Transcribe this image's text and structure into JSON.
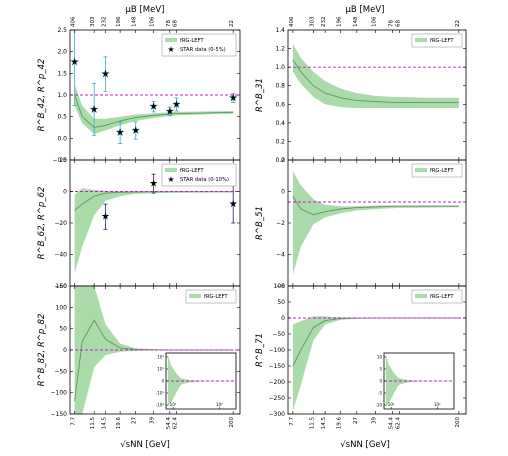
{
  "top_axis": {
    "label": "μB [MeV]",
    "ticks": [
      "406",
      "303",
      "232",
      "196",
      "148",
      "106",
      "78",
      "68",
      "22"
    ]
  },
  "bottom_axis": {
    "label": "√sNN [GeV]",
    "ticks": [
      "7.7",
      "11.5",
      "14.5",
      "19.6",
      "27",
      "39",
      "54.4",
      "62.4",
      "200"
    ]
  },
  "chart_data": [
    {
      "type": "line",
      "panel": "top-left",
      "ylabel": "R^B_42, R^p_42",
      "ylim": [
        -0.5,
        2.5
      ],
      "yticks": [
        "−0.5",
        "0.0",
        "0.5",
        "1.0",
        "1.5",
        "2.0",
        "2.5"
      ],
      "reference_line": 1.0,
      "legend": [
        "fRG-LEFT",
        "STAR data (0-5%)"
      ],
      "legend_placement": "top-right",
      "series": [
        {
          "name": "fRG-LEFT",
          "x": [
            7.7,
            9,
            11.5,
            14.5,
            19.6,
            27,
            39,
            54.4,
            62.4,
            100,
            200
          ],
          "y": [
            1.0,
            0.5,
            0.25,
            0.3,
            0.4,
            0.48,
            0.53,
            0.56,
            0.57,
            0.58,
            0.6
          ],
          "upper": [
            1.25,
            0.75,
            0.45,
            0.45,
            0.5,
            0.55,
            0.58,
            0.6,
            0.61,
            0.62,
            0.63
          ],
          "lower": [
            0.75,
            0.35,
            0.1,
            0.18,
            0.3,
            0.4,
            0.47,
            0.52,
            0.53,
            0.55,
            0.57
          ]
        },
        {
          "name": "STAR data (0-5%)",
          "x": [
            7.7,
            11.5,
            14.5,
            19.6,
            27,
            39,
            54.4,
            62.4,
            200
          ],
          "y": [
            1.76,
            0.67,
            1.48,
            0.13,
            0.18,
            0.73,
            0.62,
            0.78,
            0.93
          ],
          "err": [
            1.0,
            0.6,
            0.4,
            0.25,
            0.2,
            0.12,
            0.1,
            0.15,
            0.1
          ]
        }
      ]
    },
    {
      "type": "line",
      "panel": "top-right",
      "ylabel": "R^B_31",
      "ylim": [
        0.0,
        1.4
      ],
      "yticks": [
        "0.0",
        "0.2",
        "0.4",
        "0.6",
        "0.8",
        "1.0",
        "1.2",
        "1.4"
      ],
      "reference_line": 1.0,
      "legend": [
        "fRG-LEFT"
      ],
      "legend_placement": "top-right",
      "series": [
        {
          "name": "fRG-LEFT",
          "x": [
            7.7,
            9,
            11.5,
            14.5,
            19.6,
            27,
            39,
            54.4,
            62.4,
            100,
            200
          ],
          "y": [
            1.08,
            0.95,
            0.8,
            0.72,
            0.67,
            0.64,
            0.63,
            0.62,
            0.62,
            0.62,
            0.62
          ],
          "upper": [
            1.25,
            1.1,
            0.95,
            0.85,
            0.77,
            0.72,
            0.69,
            0.68,
            0.68,
            0.67,
            0.67
          ],
          "lower": [
            0.95,
            0.82,
            0.68,
            0.6,
            0.57,
            0.56,
            0.56,
            0.56,
            0.56,
            0.56,
            0.56
          ]
        }
      ]
    },
    {
      "type": "line",
      "panel": "middle-left",
      "ylabel": "R^B_62, R^p_62",
      "ylim": [
        -60,
        20
      ],
      "yticks": [
        "−60",
        "−40",
        "−20",
        "0",
        "20"
      ],
      "reference_line": 0,
      "legend": [
        "fRG-LEFT",
        "STAR data (0-10%)"
      ],
      "legend_placement": "top-right",
      "series": [
        {
          "name": "fRG-LEFT",
          "x": [
            7.7,
            9,
            11.5,
            14.5,
            19.6,
            27,
            39,
            54.4,
            62.4,
            100,
            200
          ],
          "y": [
            -12,
            -8,
            -3,
            -1,
            -0.5,
            -0.3,
            -0.2,
            -0.2,
            -0.2,
            -0.2,
            -0.2
          ],
          "upper": [
            -2,
            2,
            1,
            0.5,
            0.3,
            0.2,
            0.1,
            0.1,
            0.1,
            0.1,
            0.1
          ],
          "lower": [
            -52,
            -35,
            -15,
            -6,
            -3,
            -1.5,
            -1,
            -0.8,
            -0.7,
            -0.6,
            -0.5
          ]
        },
        {
          "name": "STAR data (0-10%)",
          "x": [
            14.5,
            39,
            200
          ],
          "y": [
            -16,
            5,
            -8
          ],
          "err": [
            8,
            6,
            12
          ]
        }
      ]
    },
    {
      "type": "line",
      "panel": "middle-right",
      "ylabel": "R^B_51",
      "ylim": [
        -6,
        3
      ],
      "yticks": [
        "−6",
        "−4",
        "−2",
        "0",
        "2"
      ],
      "reference_line": 0,
      "legend": [
        "fRG-LEFT"
      ],
      "legend_placement": "top-right",
      "series": [
        {
          "name": "fRG-LEFT",
          "x": [
            7.7,
            9,
            11.5,
            14.5,
            19.6,
            27,
            39,
            54.4,
            62.4,
            100,
            200
          ],
          "y": [
            0.4,
            -0.5,
            -0.9,
            -0.7,
            -0.5,
            -0.4,
            -0.35,
            -0.3,
            -0.3,
            -0.3,
            -0.3
          ],
          "upper": [
            2.2,
            1.2,
            0.2,
            -0.2,
            -0.3,
            -0.3,
            -0.25,
            -0.25,
            -0.25,
            -0.25,
            -0.25
          ],
          "lower": [
            -5.2,
            -3.2,
            -1.6,
            -1.1,
            -0.8,
            -0.6,
            -0.5,
            -0.45,
            -0.42,
            -0.4,
            -0.38
          ]
        }
      ]
    },
    {
      "type": "line",
      "panel": "bottom-left",
      "ylabel": "R^B_82, R^p_82",
      "ylim": [
        -150,
        150
      ],
      "yticks": [
        "−150",
        "−100",
        "−50",
        "0",
        "50",
        "100",
        "150"
      ],
      "reference_line": 0,
      "legend": [
        "fRG-LEFT"
      ],
      "legend_placement": "top-right",
      "series": [
        {
          "name": "fRG-LEFT",
          "x": [
            7.7,
            9,
            11.5,
            14.5,
            19.6,
            27,
            39,
            54.4,
            62.4,
            100,
            200
          ],
          "y": [
            -120,
            20,
            70,
            25,
            5,
            1,
            0.5,
            0.2,
            0.2,
            0.1,
            0.1
          ],
          "upper": [
            150,
            150,
            150,
            60,
            15,
            4,
            2,
            1,
            1,
            0.5,
            0.5
          ],
          "lower": [
            -150,
            -150,
            -40,
            -12,
            -4,
            -2,
            -1,
            -0.5,
            -0.5,
            -0.3,
            -0.3
          ]
        }
      ]
    },
    {
      "type": "line",
      "panel": "bottom-right",
      "ylabel": "R^B_71",
      "ylim": [
        -300,
        100
      ],
      "yticks": [
        "−300",
        "−250",
        "−200",
        "−150",
        "−100",
        "−50",
        "0",
        "50",
        "100"
      ],
      "reference_line": 0,
      "legend": [
        "fRG-LEFT"
      ],
      "legend_placement": "top-right",
      "series": [
        {
          "name": "fRG-LEFT",
          "x": [
            7.7,
            9,
            11.5,
            14.5,
            19.6,
            27,
            39,
            54.4,
            62.4,
            100,
            200
          ],
          "y": [
            -150,
            -100,
            -30,
            -8,
            -2,
            -0.5,
            -0.2,
            -0.1,
            -0.1,
            -0.1,
            -0.1
          ],
          "upper": [
            -20,
            -10,
            5,
            5,
            2,
            1,
            0.5,
            0.3,
            0.3,
            0.2,
            0.2
          ],
          "lower": [
            -290,
            -210,
            -70,
            -20,
            -6,
            -2,
            -1,
            -0.5,
            -0.5,
            -0.3,
            -0.3
          ]
        }
      ]
    }
  ],
  "insets": {
    "bottom-left": {
      "yticks": [
        "10³",
        "10¹",
        "0",
        "-10¹",
        "-10³"
      ],
      "xticks": [
        "10¹",
        "10²"
      ]
    },
    "bottom-right": {
      "yticks": [
        "10",
        "5",
        "0",
        "-5",
        "-10"
      ],
      "xticks": [
        "10¹",
        "10²"
      ]
    }
  }
}
